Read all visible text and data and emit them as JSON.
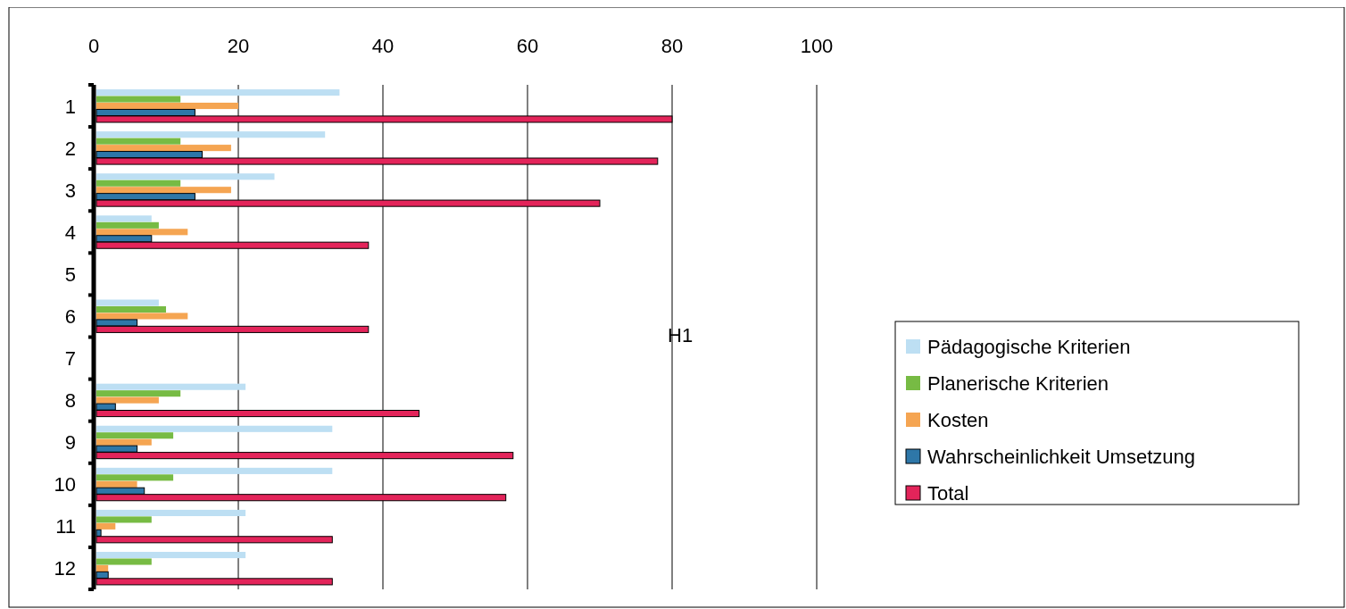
{
  "chart_data": {
    "type": "bar",
    "orientation": "horizontal",
    "categories": [
      "1",
      "2",
      "3",
      "4",
      "5",
      "6",
      "7",
      "8",
      "9",
      "10",
      "11",
      "12"
    ],
    "series": [
      {
        "name": "Pädagogische Kriterien",
        "color": "#bddff3",
        "values": [
          34,
          32,
          25,
          8,
          null,
          9,
          null,
          21,
          33,
          33,
          21,
          21
        ]
      },
      {
        "name": "Planerische Kriterien",
        "color": "#77bb44",
        "values": [
          12,
          12,
          12,
          9,
          null,
          10,
          null,
          12,
          11,
          11,
          8,
          8
        ]
      },
      {
        "name": "Kosten",
        "color": "#f5a552",
        "values": [
          20,
          19,
          19,
          13,
          null,
          13,
          null,
          9,
          8,
          6,
          3,
          2
        ]
      },
      {
        "name": "Wahrscheinlichkeit Umsetzung",
        "color": "#2e77a8",
        "values": [
          14,
          15,
          14,
          8,
          null,
          6,
          null,
          3,
          6,
          7,
          1,
          2
        ]
      },
      {
        "name": "Total",
        "color": "#e3245a",
        "values": [
          80,
          78,
          70,
          38,
          null,
          38,
          null,
          45,
          58,
          57,
          33,
          33
        ]
      }
    ],
    "xlim": [
      0,
      100
    ],
    "xticks": [
      0,
      20,
      40,
      60,
      80,
      100
    ],
    "grid": "x",
    "legend": "right",
    "annotations": [
      "H1"
    ]
  }
}
